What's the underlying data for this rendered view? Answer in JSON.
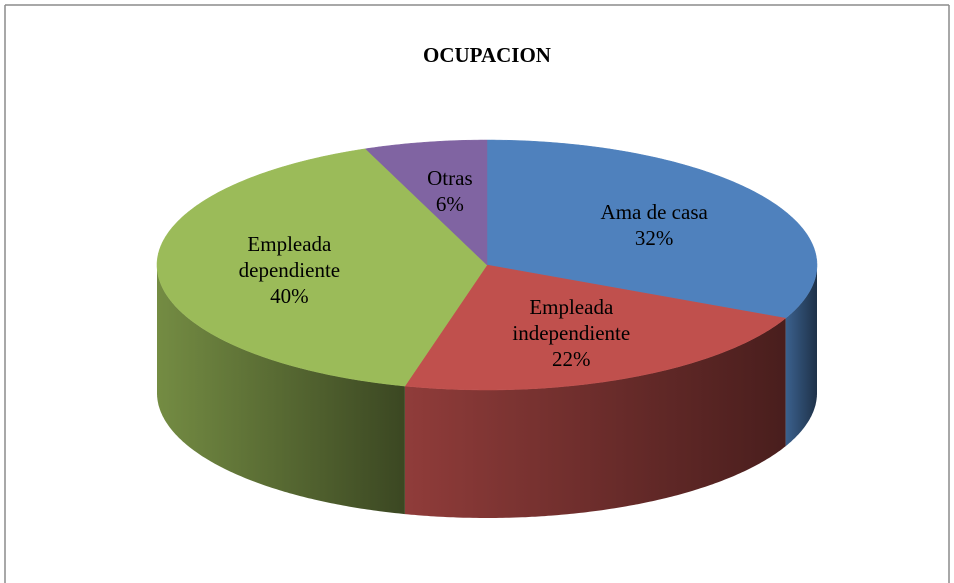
{
  "chart_data": {
    "type": "pie3d",
    "title": "OCUPACION",
    "categories": [
      "Ama de casa",
      "Empleada independiente",
      "Empleada dependiente",
      "Otras"
    ],
    "values": [
      32,
      22,
      40,
      6
    ],
    "value_labels": [
      "32%",
      "22%",
      "40%",
      "6%"
    ],
    "colors": [
      "#4f81bd",
      "#c0504d",
      "#9bbb59",
      "#8064a2"
    ]
  }
}
